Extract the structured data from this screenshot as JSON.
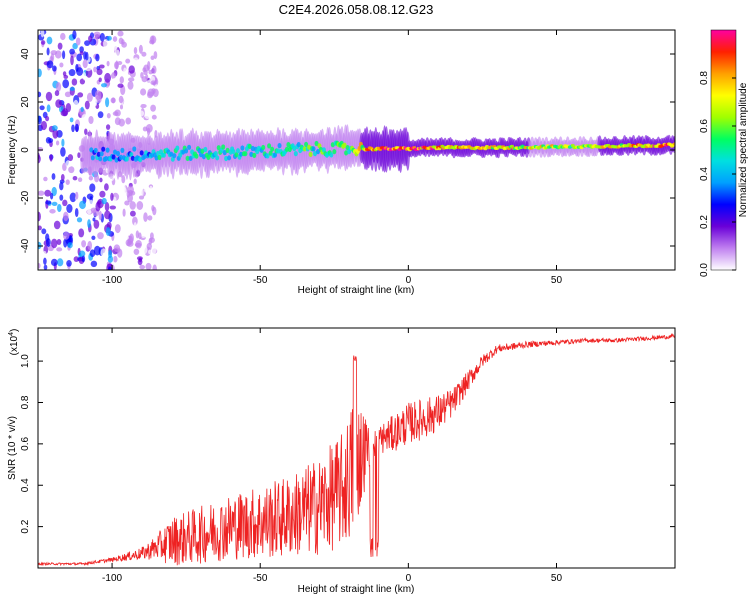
{
  "figure_title": "C2E4.2026.058.08.12.G23",
  "chart_data": [
    {
      "type": "heatmap",
      "title": "",
      "xlabel": "Height of straight line (km)",
      "ylabel": "Frequency (Hz)",
      "xlim": [
        -125,
        90
      ],
      "ylim": [
        -50,
        50
      ],
      "xticks": [
        -100,
        -50,
        0,
        50
      ],
      "yticks": [
        -40,
        -20,
        0,
        20,
        40
      ],
      "colorbar": {
        "label": "Normalized spectral amplitude",
        "range": [
          0,
          1
        ],
        "ticks": [
          0.0,
          0.2,
          0.4,
          0.6,
          0.8
        ],
        "tick_labels": [
          "0.0",
          "0.2",
          "0.4",
          "0.6",
          "0.8"
        ],
        "colormap": [
          "#ffffff",
          "#c080f0",
          "#6a00d8",
          "#0000ff",
          "#00a0ff",
          "#00e0e0",
          "#00ff60",
          "#a0ff00",
          "#ffff00",
          "#ffa000",
          "#ff2000",
          "#ff00a0"
        ]
      },
      "ridge": [
        {
          "x": -100,
          "freq": -2.0,
          "amp": 0.35
        },
        {
          "x": -80,
          "freq": -1.5,
          "amp": 0.45
        },
        {
          "x": -60,
          "freq": -1.0,
          "amp": 0.45
        },
        {
          "x": -40,
          "freq": 0.0,
          "amp": 0.5
        },
        {
          "x": -20,
          "freq": 0.5,
          "amp": 0.55
        },
        {
          "x": -10,
          "freq": 0.5,
          "amp": 0.9
        },
        {
          "x": 0,
          "freq": 0.5,
          "amp": 0.95
        },
        {
          "x": 10,
          "freq": 1.0,
          "amp": 0.8
        },
        {
          "x": 30,
          "freq": 1.0,
          "amp": 0.7
        },
        {
          "x": 60,
          "freq": 1.5,
          "amp": 0.65
        },
        {
          "x": 88,
          "freq": 2.0,
          "amp": 0.85
        }
      ],
      "noise_region_x": [
        -125,
        -100
      ]
    },
    {
      "type": "line",
      "title": "",
      "xlabel": "Height of straight line (km)",
      "ylabel": "SNR (10 * v/v)",
      "y_multiplier": "(x10",
      "y_multiplier_exp": "4",
      "y_multiplier_close": ")",
      "xlim": [
        -125,
        90
      ],
      "ylim": [
        0,
        1.16
      ],
      "xticks": [
        -100,
        -50,
        0,
        50
      ],
      "yticks": [
        0.2,
        0.4,
        0.6,
        0.8,
        1.0
      ],
      "ytick_labels": [
        "0.2",
        "0.4",
        "0.6",
        "0.8",
        "1.0"
      ],
      "series": [
        {
          "name": "SNR",
          "color": "#ee2222",
          "trend_x": [
            -125,
            -110,
            -100,
            -90,
            -85,
            -80,
            -70,
            -60,
            -50,
            -40,
            -30,
            -22,
            -18,
            -13,
            -10,
            -5,
            0,
            5,
            10,
            15,
            20,
            25,
            30,
            40,
            50,
            60,
            70,
            80,
            90
          ],
          "trend_y": [
            0.02,
            0.02,
            0.04,
            0.07,
            0.1,
            0.13,
            0.16,
            0.2,
            0.22,
            0.25,
            0.3,
            0.38,
            0.5,
            0.6,
            0.62,
            0.65,
            0.7,
            0.72,
            0.75,
            0.8,
            0.9,
            1.0,
            1.06,
            1.08,
            1.09,
            1.1,
            1.1,
            1.11,
            1.12
          ],
          "spread_y": [
            0.005,
            0.006,
            0.01,
            0.03,
            0.06,
            0.12,
            0.14,
            0.16,
            0.18,
            0.2,
            0.24,
            0.28,
            0.36,
            0.1,
            0.07,
            0.09,
            0.1,
            0.1,
            0.09,
            0.07,
            0.05,
            0.03,
            0.02,
            0.015,
            0.012,
            0.01,
            0.01,
            0.01,
            0.01
          ]
        }
      ]
    }
  ]
}
